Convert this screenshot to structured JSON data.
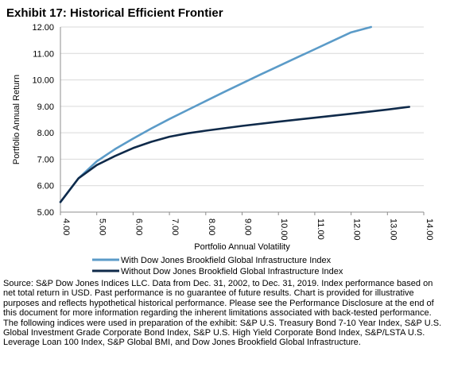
{
  "chart_data": {
    "type": "line",
    "title": "Exhibit 17: Historical Efficient Frontier",
    "xlabel": "Portfolio Annual Volatility",
    "ylabel": "Portfolio Annual Return",
    "xlim": [
      4.0,
      14.0
    ],
    "ylim": [
      5.0,
      12.0
    ],
    "x_ticks": [
      "4.00",
      "5.00",
      "6.00",
      "7.00",
      "8.00",
      "9.00",
      "10.00",
      "11.00",
      "12.00",
      "13.00",
      "14.00"
    ],
    "y_ticks": [
      "5.00",
      "6.00",
      "7.00",
      "8.00",
      "9.00",
      "10.00",
      "11.00",
      "12.00"
    ],
    "grid": "horizontal",
    "legend_position": "bottom",
    "series": [
      {
        "name": "With Dow Jones Brookfield Global Infrastructure Index",
        "color": "#5b9bc8",
        "x": [
          4.0,
          4.5,
          5.0,
          5.5,
          6.0,
          6.5,
          7.0,
          7.5,
          8.0,
          8.5,
          9.0,
          9.5,
          10.0,
          10.5,
          11.0,
          11.5,
          12.0,
          12.55
        ],
        "y": [
          5.38,
          6.28,
          6.92,
          7.38,
          7.78,
          8.16,
          8.52,
          8.86,
          9.2,
          9.54,
          9.87,
          10.2,
          10.52,
          10.84,
          11.16,
          11.48,
          11.8,
          12.0
        ]
      },
      {
        "name": "Without Dow Jones Brookfield Global Infrastructure Index",
        "color": "#0f2a4a",
        "x": [
          4.0,
          4.5,
          5.0,
          5.5,
          6.0,
          6.5,
          7.0,
          7.5,
          8.0,
          9.0,
          10.0,
          11.0,
          12.0,
          13.0,
          13.6
        ],
        "y": [
          5.38,
          6.28,
          6.78,
          7.12,
          7.42,
          7.66,
          7.85,
          7.98,
          8.08,
          8.26,
          8.42,
          8.57,
          8.72,
          8.88,
          8.98
        ]
      }
    ]
  },
  "source_note": "Source: S&P Dow Jones Indices LLC.  Data from Dec. 31, 2002, to Dec. 31, 2019.  Index performance based on net total return in USD.  Past performance is no guarantee of future results.  Chart is provided for illustrative purposes and reflects hypothetical historical performance.  Please see the Performance Disclosure at the end of this document for more information regarding the inherent limitations associated with back-tested performance.  The following indices were used in preparation of the exhibit: S&P U.S. Treasury Bond 7-10 Year Index, S&P U.S. Global Investment Grade Corporate Bond Index, S&P U.S. High Yield Corporate Bond Index, S&P/LSTA U.S. Leverage Loan 100 Index, S&P Global BMI, and Dow Jones Brookfield Global Infrastructure."
}
